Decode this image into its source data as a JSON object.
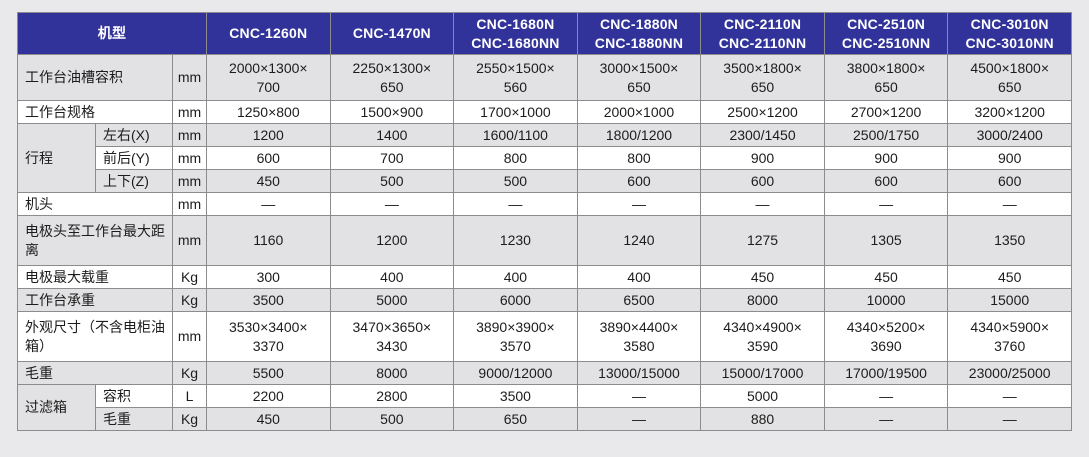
{
  "colors": {
    "page_bg": "#e9e9ec",
    "header_bg": "#31339a",
    "header_text": "#ffffff",
    "stripe": "#e2e2e4",
    "row_white": "#ffffff",
    "border": "#8c8c8c",
    "text": "#1c1c1c"
  },
  "header": {
    "model_col_label": "机型",
    "models": [
      "CNC-1260N",
      "CNC-1470N",
      "CNC-1680N\nCNC-1680NN",
      "CNC-1880N\nCNC-1880NN",
      "CNC-2110N\nCNC-2110NN",
      "CNC-2510N\nCNC-2510NN",
      "CNC-3010N\nCNC-3010NN"
    ]
  },
  "rows": {
    "oil_tank": {
      "label": "工作台油槽容积",
      "unit": "mm",
      "values": [
        "2000×1300×\n700",
        "2250×1300×\n650",
        "2550×1500×\n560",
        "3000×1500×\n650",
        "3500×1800×\n650",
        "3800×1800×\n650",
        "4500×1800×\n650"
      ]
    },
    "table_size": {
      "label": "工作台规格",
      "unit": "mm",
      "values": [
        "1250×800",
        "1500×900",
        "1700×1000",
        "2000×1000",
        "2500×1200",
        "2700×1200",
        "3200×1200"
      ]
    },
    "travel_group_label": "行程",
    "travel_x": {
      "label": "左右(X)",
      "unit": "mm",
      "values": [
        "1200",
        "1400",
        "1600/1100",
        "1800/1200",
        "2300/1450",
        "2500/1750",
        "3000/2400"
      ]
    },
    "travel_y": {
      "label": "前后(Y)",
      "unit": "mm",
      "values": [
        "600",
        "700",
        "800",
        "800",
        "900",
        "900",
        "900"
      ]
    },
    "travel_z": {
      "label": "上下(Z)",
      "unit": "mm",
      "values": [
        "450",
        "500",
        "500",
        "600",
        "600",
        "600",
        "600"
      ]
    },
    "machine_head": {
      "label": "机头",
      "unit": "mm",
      "values": [
        "—",
        "—",
        "—",
        "—",
        "—",
        "—",
        "—"
      ]
    },
    "electrode_distance": {
      "label": "电极头至工作台最大距离",
      "unit": "mm",
      "values": [
        "1160",
        "1200",
        "1230",
        "1240",
        "1275",
        "1305",
        "1350"
      ]
    },
    "electrode_load": {
      "label": "电极最大载重",
      "unit": "Kg",
      "values": [
        "300",
        "400",
        "400",
        "400",
        "450",
        "450",
        "450"
      ]
    },
    "table_load": {
      "label": "工作台承重",
      "unit": "Kg",
      "values": [
        "3500",
        "5000",
        "6000",
        "6500",
        "8000",
        "10000",
        "15000"
      ]
    },
    "dimensions": {
      "label": "外观尺寸（不含电柜油箱）",
      "unit": "mm",
      "values": [
        "3530×3400×\n3370",
        "3470×3650×\n3430",
        "3890×3900×\n3570",
        "3890×4400×\n3580",
        "4340×4900×\n3590",
        "4340×5200×\n3690",
        "4340×5900×\n3760"
      ]
    },
    "gross_weight": {
      "label": "毛重",
      "unit": "Kg",
      "values": [
        "5500",
        "8000",
        "9000/12000",
        "13000/15000",
        "15000/17000",
        "17000/19500",
        "23000/25000"
      ]
    },
    "filter_group_label": "过滤箱",
    "filter_capacity": {
      "label": "容积",
      "unit": "L",
      "values": [
        "2200",
        "2800",
        "3500",
        "—",
        "5000",
        "—",
        "—"
      ]
    },
    "filter_weight": {
      "label": "毛重",
      "unit": "Kg",
      "values": [
        "450",
        "500",
        "650",
        "—",
        "880",
        "—",
        "—"
      ]
    }
  }
}
